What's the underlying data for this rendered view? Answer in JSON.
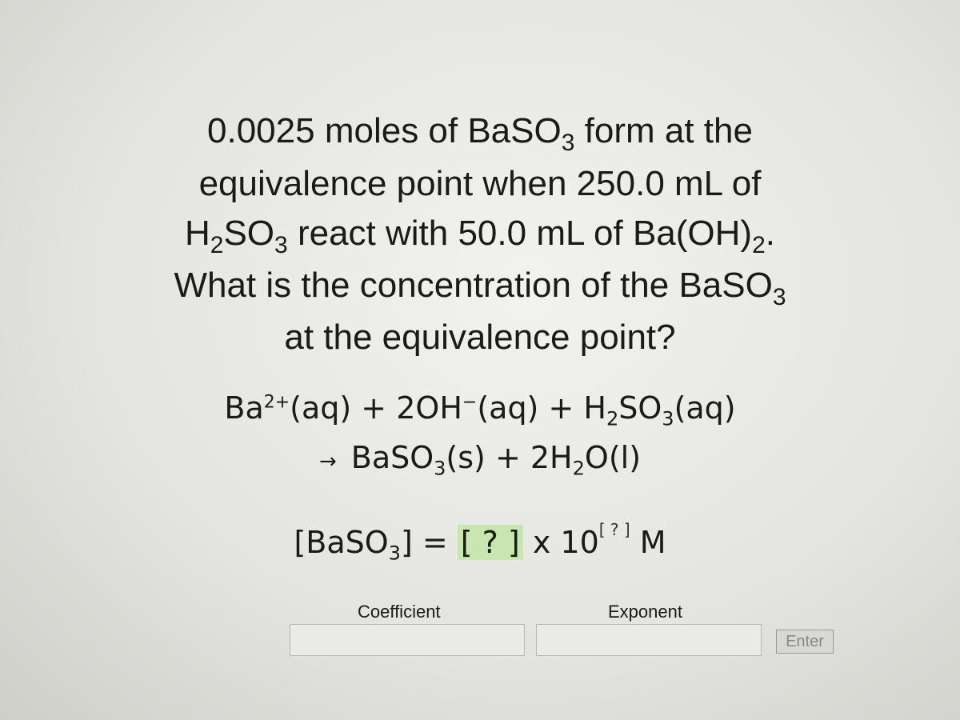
{
  "question": {
    "lines": [
      [
        "0.0025 moles of BaSO",
        "3",
        " form at the"
      ],
      [
        "equivalence point when 250.0 mL of"
      ],
      [
        "H",
        "2",
        "SO",
        "3",
        " react with 50.0 mL of Ba(OH)",
        "2",
        "."
      ],
      [
        "What is the concentration of the BaSO",
        "3"
      ],
      [
        "at the equivalence point?"
      ]
    ]
  },
  "equation": {
    "line1": [
      "Ba",
      "2+",
      "(aq) + 2OH",
      "−",
      "(aq) + H",
      "2",
      "SO",
      "3",
      "(aq)"
    ],
    "line2": [
      "→",
      "BaSO",
      "3",
      "(s) + 2H",
      "2",
      "O(l)"
    ]
  },
  "answer": {
    "parts": [
      "[BaSO",
      "3",
      "] = ",
      "[ ? ]",
      " x 10",
      "[ ? ]",
      " M"
    ]
  },
  "form": {
    "coefficient_label": "Coefficient",
    "exponent_label": "Exponent",
    "button": "Enter"
  }
}
